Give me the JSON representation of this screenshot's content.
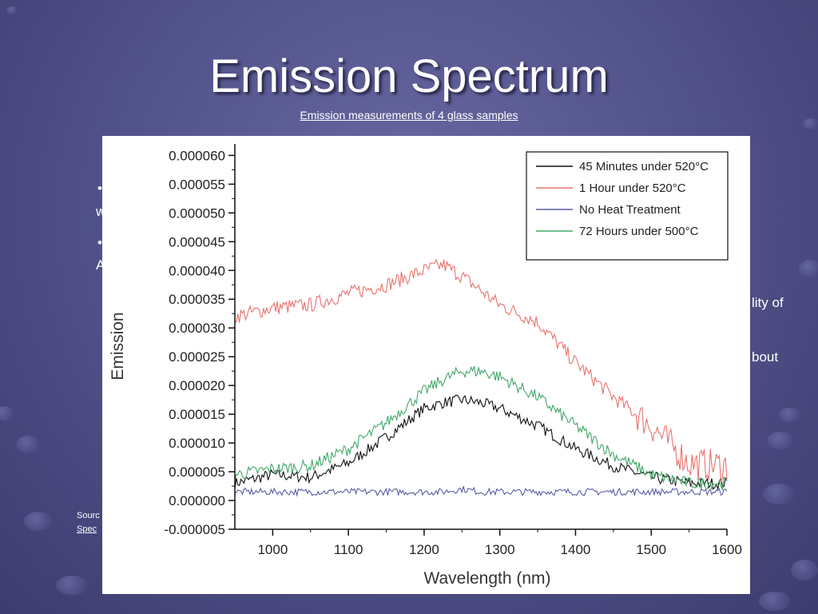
{
  "slide": {
    "title": "Emission Spectrum",
    "subtitle": "Emission measurements of 4 glass samples",
    "partial_text": {
      "bullet1": "•",
      "line1": "w",
      "bullet2": "•",
      "line2": "A",
      "right1": "lity of",
      "right2": "bout",
      "source1": "Sourc",
      "source2": "Spec"
    }
  },
  "chart_data": {
    "type": "line",
    "xlabel": "Wavelength (nm)",
    "ylabel": "Emission",
    "xlim": [
      950,
      1600
    ],
    "ylim": [
      -5e-06,
      6.2e-05
    ],
    "x_ticks": [
      "1000",
      "1100",
      "1200",
      "1300",
      "1400",
      "1500",
      "1600"
    ],
    "x_tick_values": [
      1000,
      1100,
      1200,
      1300,
      1400,
      1500,
      1600
    ],
    "y_ticks": [
      "-0.000005",
      "0.000000",
      "0.000005",
      "0.000010",
      "0.000015",
      "0.000020",
      "0.000025",
      "0.000030",
      "0.000035",
      "0.000040",
      "0.000045",
      "0.000050",
      "0.000055",
      "0.000060"
    ],
    "y_tick_values": [
      -5e-06,
      0,
      5e-06,
      1e-05,
      1.5e-05,
      2e-05,
      2.5e-05,
      3e-05,
      3.5e-05,
      4e-05,
      4.5e-05,
      5e-05,
      5.5e-05,
      6e-05
    ],
    "legend_position": "top-right",
    "x": [
      950,
      1000,
      1050,
      1100,
      1150,
      1200,
      1225,
      1250,
      1275,
      1300,
      1350,
      1400,
      1450,
      1500,
      1550,
      1600
    ],
    "series": [
      {
        "name": "45 Minutes under 520°C",
        "color": "#111111",
        "values": [
          3e-06,
          4.5e-06,
          4e-06,
          6.5e-06,
          1.1e-05,
          1.6e-05,
          1.7e-05,
          1.75e-05,
          1.7e-05,
          1.6e-05,
          1.3e-05,
          9e-06,
          6e-06,
          4e-06,
          3e-06,
          3e-06
        ]
      },
      {
        "name": "1 Hour under 520°C",
        "color": "#e8736e",
        "values": [
          3.2e-05,
          3.35e-05,
          3.4e-05,
          3.6e-05,
          3.75e-05,
          4e-05,
          4.1e-05,
          3.9e-05,
          3.65e-05,
          3.4e-05,
          3.1e-05,
          2.4e-05,
          1.8e-05,
          1.3e-05,
          6.5e-06,
          6e-06
        ]
      },
      {
        "name": "No Heat Treatment",
        "color": "#5c5ca8",
        "values": [
          1.5e-06,
          1.5e-06,
          1.5e-06,
          1.5e-06,
          1.5e-06,
          1.5e-06,
          1.5e-06,
          2e-06,
          1.5e-06,
          1.5e-06,
          1.5e-06,
          1.5e-06,
          1.5e-06,
          1.5e-06,
          1.5e-06,
          1.5e-06
        ]
      },
      {
        "name": "72 Hours under 500°C",
        "color": "#43a86a",
        "values": [
          4.5e-06,
          5.5e-06,
          6e-06,
          9e-06,
          1.35e-05,
          1.9e-05,
          2.1e-05,
          2.25e-05,
          2.25e-05,
          2.15e-05,
          1.8e-05,
          1.3e-05,
          8e-06,
          4.5e-06,
          3e-06,
          3e-06
        ]
      }
    ]
  }
}
